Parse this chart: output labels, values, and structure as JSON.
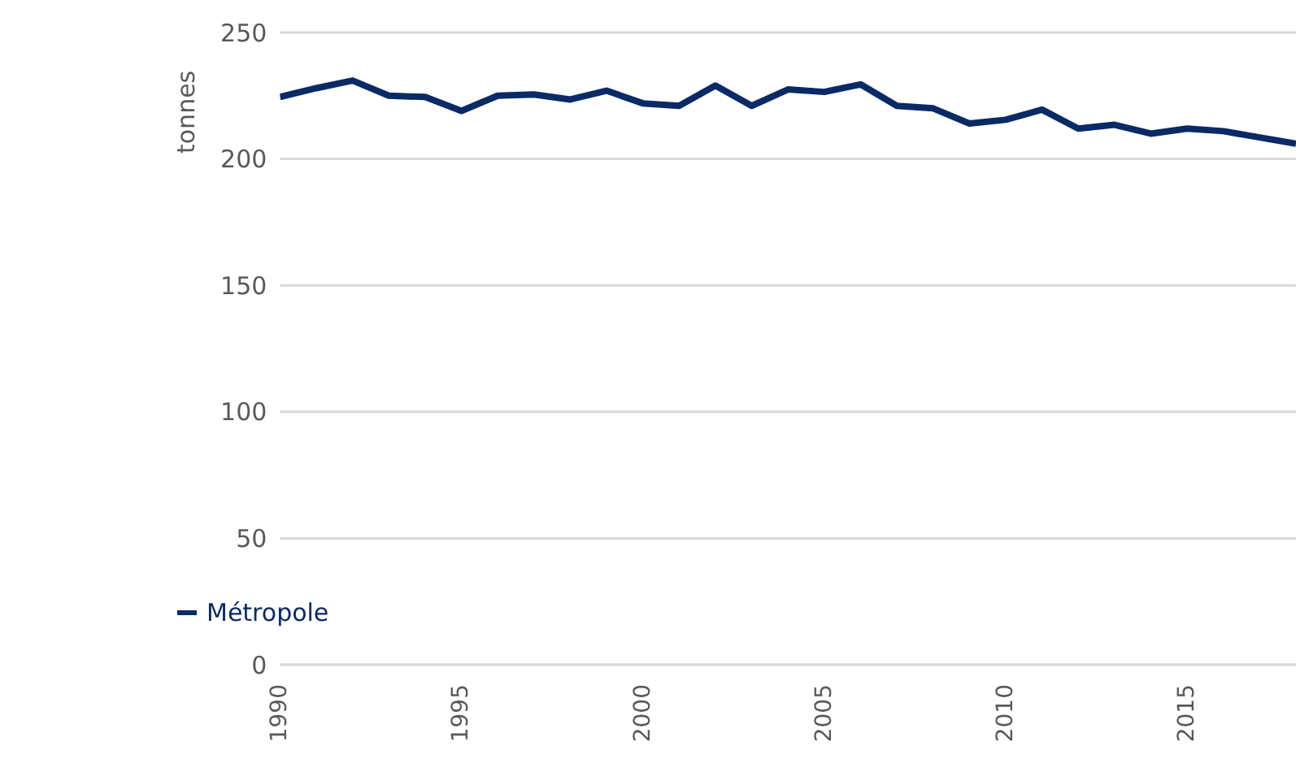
{
  "chart_data": {
    "type": "line",
    "ylabel": "tonnes",
    "x": [
      1990,
      1991,
      1992,
      1993,
      1994,
      1995,
      1996,
      1997,
      1998,
      1999,
      2000,
      2001,
      2002,
      2003,
      2004,
      2005,
      2006,
      2007,
      2008,
      2009,
      2010,
      2011,
      2012,
      2013,
      2014,
      2015,
      2016,
      2017,
      2018
    ],
    "series": [
      {
        "name": "Métropole",
        "color": "#0a2a66",
        "values": [
          224.5,
          228,
          231,
          225,
          224.5,
          219,
          225,
          225.5,
          223.5,
          227,
          222,
          221,
          229,
          221,
          227.5,
          226.5,
          229.5,
          221,
          220,
          214,
          215.5,
          219.5,
          212,
          213.5,
          210,
          212,
          211,
          208.5,
          206
        ]
      }
    ],
    "xlim": [
      1990,
      2018
    ],
    "xticks": [
      1990,
      1995,
      2000,
      2005,
      2010,
      2015
    ],
    "ylim": [
      0,
      250
    ],
    "yticks": [
      0,
      50,
      100,
      150,
      200,
      250
    ],
    "grid": "y",
    "legend": "bottom left",
    "marker": "none",
    "line_style": "solid"
  }
}
